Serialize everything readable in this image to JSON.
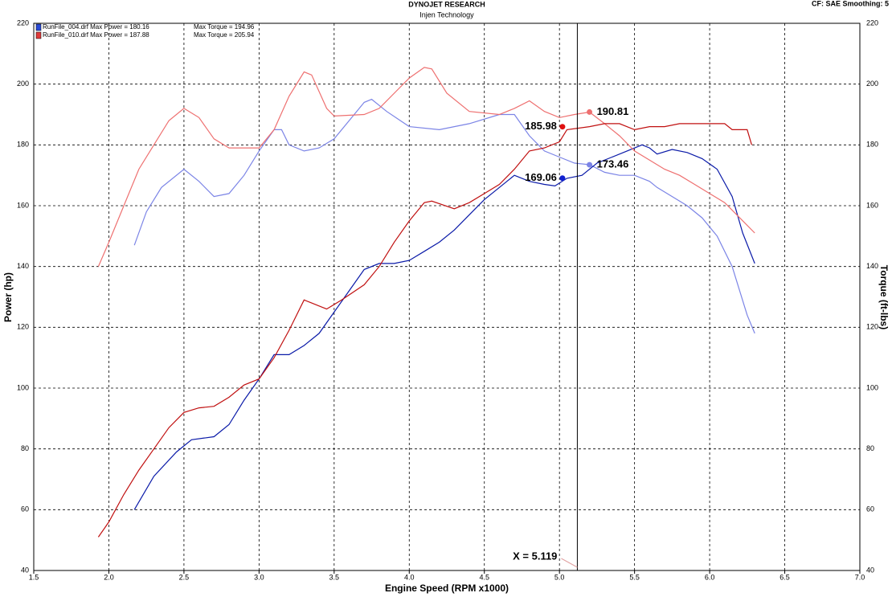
{
  "chart_data": {
    "type": "line",
    "title": "DYNOJET RESEARCH",
    "subtitle": "Injen Technology",
    "settings_text": "CF: SAE  Smoothing: 5",
    "xlabel": "Engine Speed (RPM x1000)",
    "ylabel": "Power (hp)",
    "y2label": "Torque (ft-lbs)",
    "xlim": [
      1.5,
      7.0
    ],
    "xticks": [
      1.5,
      {
        "value": 2,
        "label": "2.0"
      },
      2.5,
      {
        "value": 3,
        "label": "3.0"
      },
      3.5,
      {
        "value": 4,
        "label": "4.0"
      },
      4.5,
      {
        "value": 5,
        "label": "5.0"
      },
      5.5,
      {
        "value": 6,
        "label": "6.0"
      },
      6.5,
      {
        "value": 7,
        "label": "7.0"
      }
    ],
    "ylim": [
      40,
      220
    ],
    "yticks": [
      40,
      60,
      80,
      100,
      120,
      140,
      160,
      180,
      200,
      220
    ],
    "y2lim": [
      40,
      220
    ],
    "y2ticks": [
      40,
      60,
      80,
      100,
      120,
      140,
      160,
      180,
      200,
      220
    ],
    "grid": true,
    "runs": [
      {
        "power_legend": "RunFile_004.drf Max Power = 180.16",
        "torque_legend": "Max Torque = 194.96",
        "legend_color": "#2a4bd7",
        "power_color": "#0a1aa8",
        "torque_color": "#7b84e6",
        "power_x": [
          2.17,
          2.3,
          2.45,
          2.55,
          2.7,
          2.8,
          2.9,
          3.0,
          3.1,
          3.2,
          3.3,
          3.4,
          3.5,
          3.6,
          3.7,
          3.8,
          3.9,
          4.0,
          4.1,
          4.2,
          4.3,
          4.4,
          4.5,
          4.6,
          4.7,
          4.8,
          4.9,
          4.97,
          5.05,
          5.15,
          5.25,
          5.35,
          5.45,
          5.55,
          5.6,
          5.65,
          5.75,
          5.85,
          5.95,
          6.05,
          6.15,
          6.22,
          6.3
        ],
        "power": [
          60,
          71,
          79,
          83,
          84,
          88,
          96,
          103,
          111,
          111,
          114,
          118,
          125,
          132,
          139,
          141,
          141,
          142,
          145,
          148,
          152,
          157,
          162,
          166,
          170,
          168,
          167,
          166.5,
          169,
          170,
          174,
          176,
          178,
          180,
          179,
          177,
          178.5,
          177.5,
          175.5,
          172,
          163,
          151,
          141
        ],
        "torque_x": [
          2.17,
          2.25,
          2.35,
          2.5,
          2.6,
          2.7,
          2.8,
          2.9,
          3.0,
          3.1,
          3.15,
          3.2,
          3.3,
          3.4,
          3.5,
          3.6,
          3.7,
          3.75,
          3.85,
          4.0,
          4.2,
          4.4,
          4.6,
          4.7,
          4.8,
          4.9,
          5.0,
          5.1,
          5.2,
          5.3,
          5.4,
          5.5,
          5.6,
          5.65,
          5.75,
          5.85,
          5.95,
          6.05,
          6.15,
          6.25,
          6.3
        ],
        "torque": [
          147,
          158,
          166,
          172,
          168,
          163,
          164,
          170,
          178,
          185,
          185,
          180,
          178,
          179,
          182,
          188,
          194,
          195,
          191,
          186,
          185,
          187,
          190,
          190,
          183,
          178,
          176,
          174,
          173.5,
          171,
          170,
          170,
          168,
          166,
          163,
          160,
          156,
          150,
          140,
          124,
          118
        ]
      },
      {
        "power_legend": "RunFile_010.drf Max Power = 187.88",
        "torque_legend": "Max Torque = 205.94",
        "legend_color": "#e03a3a",
        "power_color": "#c01010",
        "torque_color": "#ee7070",
        "power_x": [
          1.93,
          2.0,
          2.1,
          2.2,
          2.3,
          2.4,
          2.5,
          2.6,
          2.7,
          2.8,
          2.9,
          3.0,
          3.1,
          3.2,
          3.3,
          3.35,
          3.45,
          3.55,
          3.7,
          3.8,
          3.9,
          4.0,
          4.1,
          4.15,
          4.3,
          4.4,
          4.5,
          4.6,
          4.7,
          4.8,
          4.9,
          5.0,
          5.05,
          5.2,
          5.3,
          5.4,
          5.5,
          5.6,
          5.7,
          5.8,
          5.9,
          6.0,
          6.1,
          6.15,
          6.25,
          6.28
        ],
        "power": [
          51,
          56,
          65,
          73,
          80,
          87,
          92,
          93.5,
          94,
          97,
          101,
          103,
          110,
          119,
          129,
          128,
          126,
          129,
          134,
          140,
          148,
          155,
          161,
          161.5,
          159,
          161,
          164,
          167,
          172,
          178,
          179,
          181,
          185,
          186,
          187,
          187,
          185,
          186,
          186,
          187,
          187,
          187,
          187,
          185,
          185,
          180
        ],
        "torque_x": [
          1.93,
          2.0,
          2.1,
          2.2,
          2.3,
          2.4,
          2.5,
          2.6,
          2.7,
          2.8,
          2.9,
          3.0,
          3.1,
          3.2,
          3.3,
          3.35,
          3.45,
          3.5,
          3.7,
          3.8,
          3.9,
          4.0,
          4.1,
          4.15,
          4.25,
          4.4,
          4.6,
          4.7,
          4.8,
          4.9,
          5.0,
          5.1,
          5.2,
          5.3,
          5.4,
          5.5,
          5.6,
          5.7,
          5.8,
          5.9,
          6.0,
          6.1,
          6.2,
          6.3
        ],
        "torque": [
          140,
          148,
          160,
          172,
          180,
          188,
          192,
          189,
          182,
          179,
          179,
          179,
          185,
          196,
          204,
          203,
          192,
          189.5,
          190,
          192,
          197,
          202,
          205.5,
          205,
          197,
          191,
          190,
          192,
          194.5,
          191,
          189,
          190,
          190.8,
          187,
          183,
          178,
          175,
          172,
          170,
          167,
          164,
          161,
          156,
          151
        ]
      }
    ],
    "cursor": {
      "x": 5.119,
      "label": "X = 5.119"
    },
    "cursor_values": [
      {
        "x": 5.2,
        "value": 190.81,
        "color": "#ee7070"
      },
      {
        "x": 5.02,
        "value": 185.98,
        "color": "#e01010"
      },
      {
        "x": 5.2,
        "value": 173.46,
        "color": "#7b84e6"
      },
      {
        "x": 5.02,
        "value": 169.06,
        "color": "#1020d0"
      }
    ]
  }
}
